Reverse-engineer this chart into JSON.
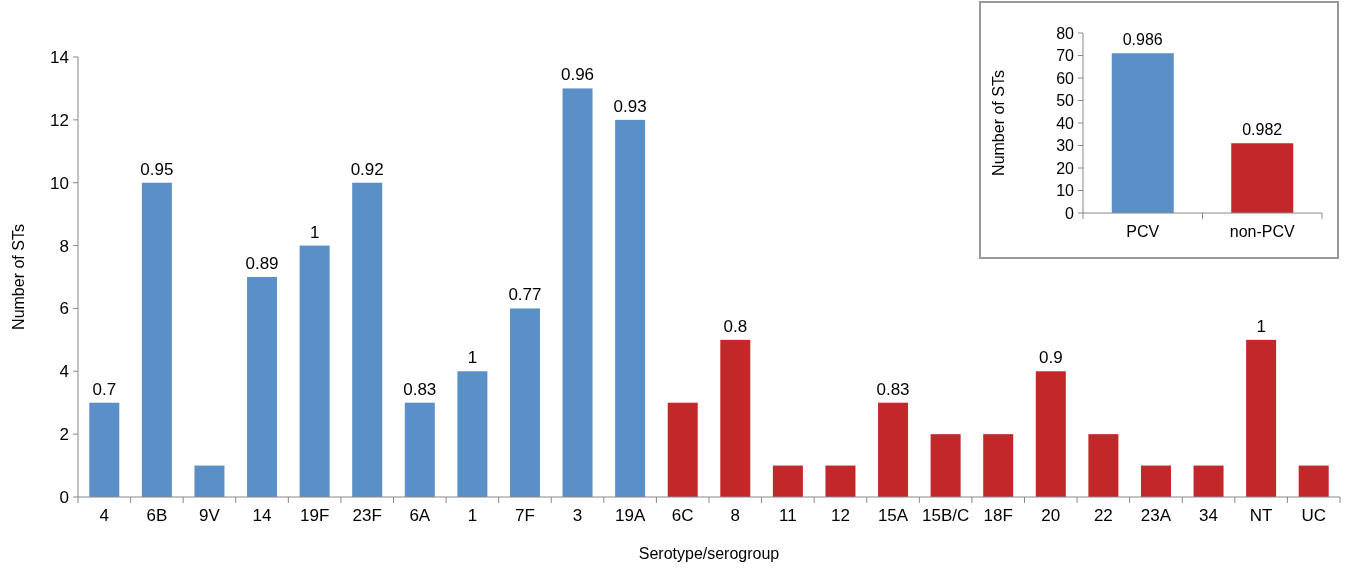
{
  "chart_data": [
    {
      "type": "bar",
      "xlabel": "Serotype/serogroup",
      "ylabel": "Number of STs",
      "categories": [
        "4",
        "6B",
        "9V",
        "14",
        "19F",
        "23F",
        "6A",
        "1",
        "7F",
        "3",
        "19A",
        "6C",
        "8",
        "11",
        "12",
        "15A",
        "15B/C",
        "18F",
        "20",
        "22",
        "23A",
        "34",
        "NT",
        "UC"
      ],
      "values": [
        3,
        10,
        1,
        7,
        8,
        10,
        3,
        4,
        6,
        13,
        12,
        3,
        5,
        1,
        1,
        3,
        2,
        2,
        4,
        2,
        1,
        1,
        5,
        1
      ],
      "colors": [
        "#5b8fc7",
        "#5b8fc7",
        "#5b8fc7",
        "#5b8fc7",
        "#5b8fc7",
        "#5b8fc7",
        "#5b8fc7",
        "#5b8fc7",
        "#5b8fc7",
        "#5b8fc7",
        "#5b8fc7",
        "#c0282a",
        "#c0282a",
        "#c0282a",
        "#c0282a",
        "#c0282a",
        "#c0282a",
        "#c0282a",
        "#c0282a",
        "#c0282a",
        "#c0282a",
        "#c0282a",
        "#c0282a",
        "#c0282a"
      ],
      "annotations": [
        {
          "text": "0.7",
          "x": "4",
          "y": 3
        },
        {
          "text": "0.95",
          "x": "6B",
          "y": 10
        },
        {
          "text": "0.89",
          "x": "14",
          "y": 7
        },
        {
          "text": "1",
          "x": "19F",
          "y": 8
        },
        {
          "text": "0.92",
          "x": "23F",
          "y": 10
        },
        {
          "text": "0.83",
          "x": "6A",
          "y": 3
        },
        {
          "text": "1",
          "x": "1",
          "y": 4
        },
        {
          "text": "0.77",
          "x": "7F",
          "y": 6
        },
        {
          "text": "0.96",
          "x": "3",
          "y": 13
        },
        {
          "text": "0.93",
          "x": "19A",
          "y": 12
        },
        {
          "text": "0.8",
          "x": "8",
          "y": 5
        },
        {
          "text": "0.83",
          "x": "15A",
          "y": 3
        },
        {
          "text": "0.9",
          "x": "20",
          "y": 4
        },
        {
          "text": "1",
          "x": "NT",
          "y": 5
        }
      ],
      "ylim": [
        0,
        14
      ],
      "yticks": [
        0,
        2,
        4,
        6,
        8,
        10,
        12,
        14
      ]
    },
    {
      "type": "bar",
      "ylabel": "Number of STs",
      "categories": [
        "PCV",
        "non-PCV"
      ],
      "values": [
        71,
        31
      ],
      "colors": [
        "#5b8fc7",
        "#c0282a"
      ],
      "annotations": [
        {
          "text": "0.986",
          "x": "PCV",
          "y": 71
        },
        {
          "text": "0.982",
          "x": "non-PCV",
          "y": 31
        }
      ],
      "ylim": [
        0,
        80
      ],
      "yticks": [
        0,
        10,
        20,
        30,
        40,
        50,
        60,
        70,
        80
      ]
    }
  ]
}
